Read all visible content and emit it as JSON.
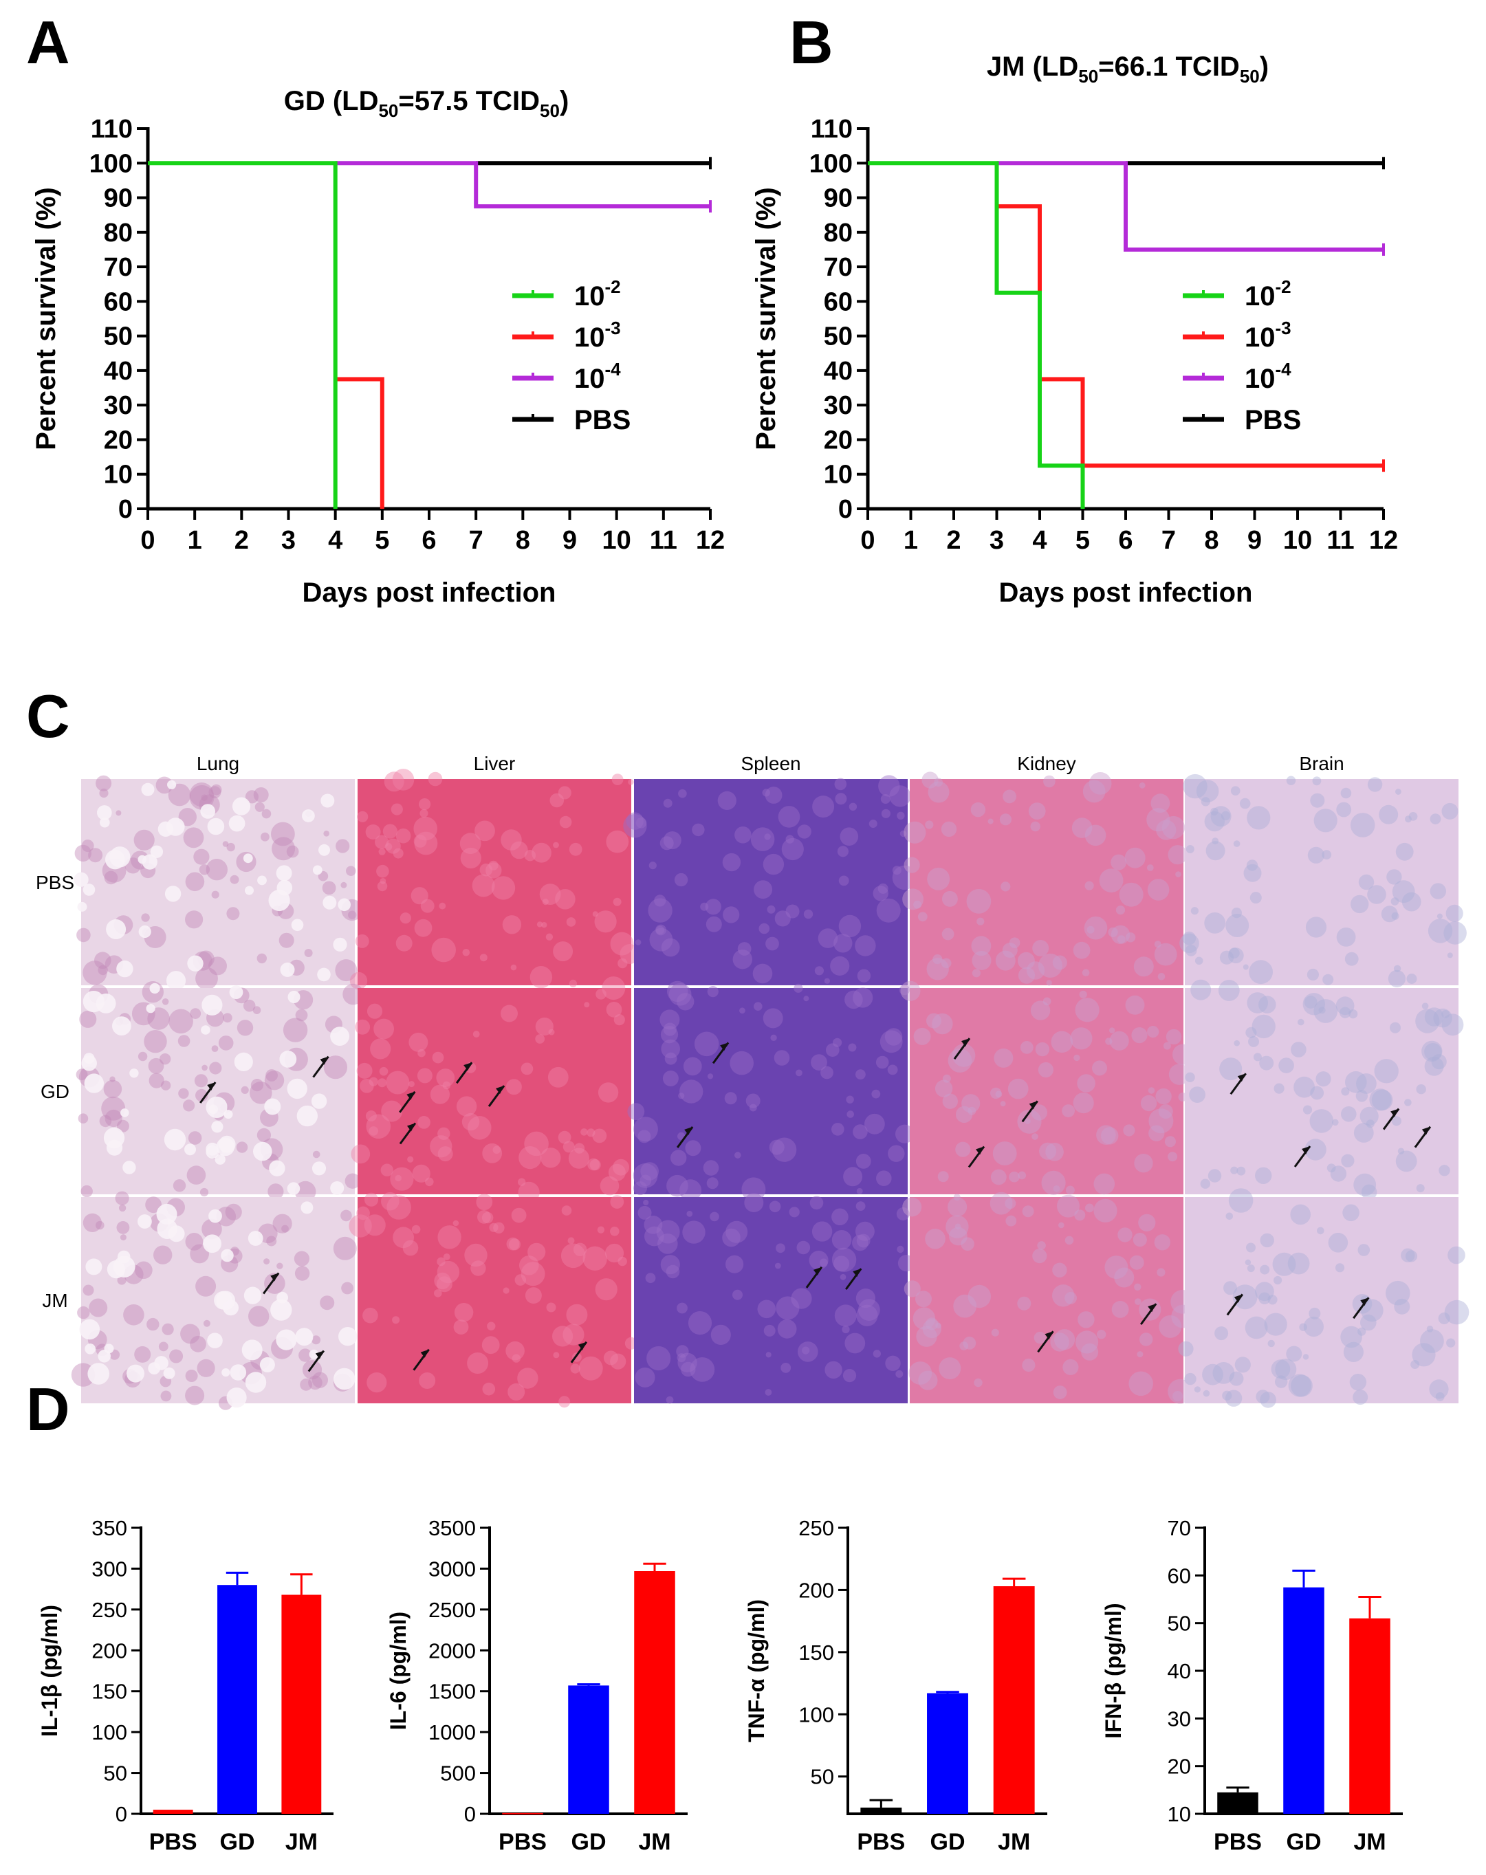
{
  "panels": {
    "A": "A",
    "B": "B",
    "C": "C",
    "D": "D"
  },
  "chart_data": [
    {
      "id": "A",
      "type": "line",
      "step": true,
      "title": "GD (LD50=57.5 TCID50)",
      "title_parts": {
        "pre": "GD (LD",
        "sub1": "50",
        "mid": "=57.5 TCID",
        "sub2": "50",
        "post": ")"
      },
      "xlabel": "Days post infection",
      "ylabel": "Percent survival (%)",
      "xlim": [
        0,
        12
      ],
      "ylim": [
        0,
        110
      ],
      "xticks": [
        "0",
        "1",
        "2",
        "3",
        "4",
        "5",
        "6",
        "7",
        "8",
        "9",
        "10",
        "11",
        "12"
      ],
      "yticks": [
        "0",
        "10",
        "20",
        "30",
        "40",
        "50",
        "60",
        "70",
        "80",
        "90",
        "100",
        "110"
      ],
      "grid": false,
      "legend_position": "center-right",
      "series": [
        {
          "name": "10-2",
          "label_base": "10",
          "label_exp": "-2",
          "color": "#17d317",
          "points": [
            [
              0,
              100
            ],
            [
              4,
              100
            ],
            [
              4,
              0
            ]
          ]
        },
        {
          "name": "10-3",
          "label_base": "10",
          "label_exp": "-3",
          "color": "#ff1a1a",
          "points": [
            [
              4,
              37.5
            ],
            [
              5,
              37.5
            ],
            [
              5,
              0
            ]
          ]
        },
        {
          "name": "10-4",
          "label_base": "10",
          "label_exp": "-4",
          "color": "#b42ad8",
          "points": [
            [
              4,
              100
            ],
            [
              7,
              100
            ],
            [
              7,
              87.5
            ],
            [
              12,
              87.5
            ]
          ]
        },
        {
          "name": "PBS",
          "label_base": "PBS",
          "label_exp": "",
          "color": "#000000",
          "points": [
            [
              7,
              100
            ],
            [
              12,
              100
            ]
          ]
        }
      ]
    },
    {
      "id": "B",
      "type": "line",
      "step": true,
      "title": "JM (LD50=66.1 TCID50)",
      "title_parts": {
        "pre": "JM (LD",
        "sub1": "50",
        "mid": "=66.1 TCID",
        "sub2": "50",
        "post": ")"
      },
      "xlabel": "Days post infection",
      "ylabel": "Percent survival (%)",
      "xlim": [
        0,
        12
      ],
      "ylim": [
        0,
        110
      ],
      "xticks": [
        "0",
        "1",
        "2",
        "3",
        "4",
        "5",
        "6",
        "7",
        "8",
        "9",
        "10",
        "11",
        "12"
      ],
      "yticks": [
        "0",
        "10",
        "20",
        "30",
        "40",
        "50",
        "60",
        "70",
        "80",
        "90",
        "100",
        "110"
      ],
      "grid": false,
      "legend_position": "center-right",
      "series": [
        {
          "name": "10-2",
          "label_base": "10",
          "label_exp": "-2",
          "color": "#17d317",
          "points": [
            [
              0,
              100
            ],
            [
              3,
              100
            ],
            [
              3,
              62.5
            ],
            [
              4,
              62.5
            ],
            [
              4,
              12.5
            ],
            [
              5,
              12.5
            ],
            [
              5,
              0
            ]
          ]
        },
        {
          "name": "10-3",
          "label_base": "10",
          "label_exp": "-3",
          "color": "#ff1a1a",
          "points": [
            [
              3,
              87.5
            ],
            [
              4,
              87.5
            ],
            [
              4,
              37.5
            ],
            [
              5,
              37.5
            ],
            [
              5,
              12.5
            ],
            [
              12,
              12.5
            ]
          ]
        },
        {
          "name": "10-4",
          "label_base": "10",
          "label_exp": "-4",
          "color": "#b42ad8",
          "points": [
            [
              3,
              100
            ],
            [
              6,
              100
            ],
            [
              6,
              75
            ],
            [
              12,
              75
            ]
          ]
        },
        {
          "name": "PBS",
          "label_base": "PBS",
          "label_exp": "",
          "color": "#000000",
          "points": [
            [
              6,
              100
            ],
            [
              12,
              100
            ]
          ]
        }
      ]
    },
    {
      "id": "D1",
      "type": "bar",
      "ylabel": "IL-1β (pg/ml)",
      "categories": [
        "PBS",
        "GD",
        "JM"
      ],
      "values": [
        5,
        280,
        268
      ],
      "errors": [
        0,
        15,
        25
      ],
      "colors": [
        "#ff0000",
        "#0000ff",
        "#ff0000"
      ],
      "ylim": [
        0,
        350
      ],
      "yticks": [
        "0",
        "50",
        "100",
        "150",
        "200",
        "250",
        "300",
        "350"
      ],
      "grid": false
    },
    {
      "id": "D2",
      "type": "bar",
      "ylabel": "IL-6 (pg/ml)",
      "categories": [
        "PBS",
        "GD",
        "JM"
      ],
      "values": [
        10,
        1570,
        2970
      ],
      "errors": [
        0,
        15,
        90
      ],
      "colors": [
        "#ff0000",
        "#0000ff",
        "#ff0000"
      ],
      "ylim": [
        0,
        3500
      ],
      "yticks": [
        "0",
        "500",
        "1000",
        "1500",
        "2000",
        "2500",
        "3000",
        "3500"
      ],
      "grid": false
    },
    {
      "id": "D3",
      "type": "bar",
      "ylabel": "TNF-α (pg/ml)",
      "categories": [
        "PBS",
        "GD",
        "JM"
      ],
      "values": [
        25,
        117,
        203
      ],
      "errors": [
        6,
        1,
        6
      ],
      "colors": [
        "#000000",
        "#0000ff",
        "#ff0000"
      ],
      "ylim": [
        20,
        250
      ],
      "yticks": [
        "50",
        "100",
        "150",
        "200",
        "250"
      ],
      "tick_values": [
        50,
        100,
        150,
        200,
        250
      ],
      "grid": false
    },
    {
      "id": "D4",
      "type": "bar",
      "ylabel": "IFN-β (pg/ml)",
      "categories": [
        "PBS",
        "GD",
        "JM"
      ],
      "values": [
        14.5,
        57.5,
        51
      ],
      "errors": [
        1,
        3.5,
        4.5
      ],
      "colors": [
        "#000000",
        "#0000ff",
        "#ff0000"
      ],
      "ylim": [
        10,
        70
      ],
      "yticks": [
        "10",
        "20",
        "30",
        "40",
        "50",
        "60",
        "70"
      ],
      "grid": false
    }
  ],
  "histology": {
    "columns": [
      "Lung",
      "Liver",
      "Spleen",
      "Kidney",
      "Brain"
    ],
    "rows": [
      "PBS",
      "GD",
      "JM"
    ],
    "tissue_colors": {
      "Lung": [
        "#e9d6e6",
        "#c48ab8"
      ],
      "Liver": [
        "#e2507a",
        "#f081a6"
      ],
      "Spleen": [
        "#6a43b0",
        "#9a6cc8"
      ],
      "Kidney": [
        "#e07aa6",
        "#c9a0cf"
      ],
      "Brain": [
        "#e0c9e4",
        "#aeb0d8"
      ]
    },
    "arrow_counts": [
      [
        0,
        0,
        0,
        0,
        0
      ],
      [
        2,
        4,
        2,
        3,
        4
      ],
      [
        2,
        2,
        2,
        2,
        2
      ]
    ]
  }
}
